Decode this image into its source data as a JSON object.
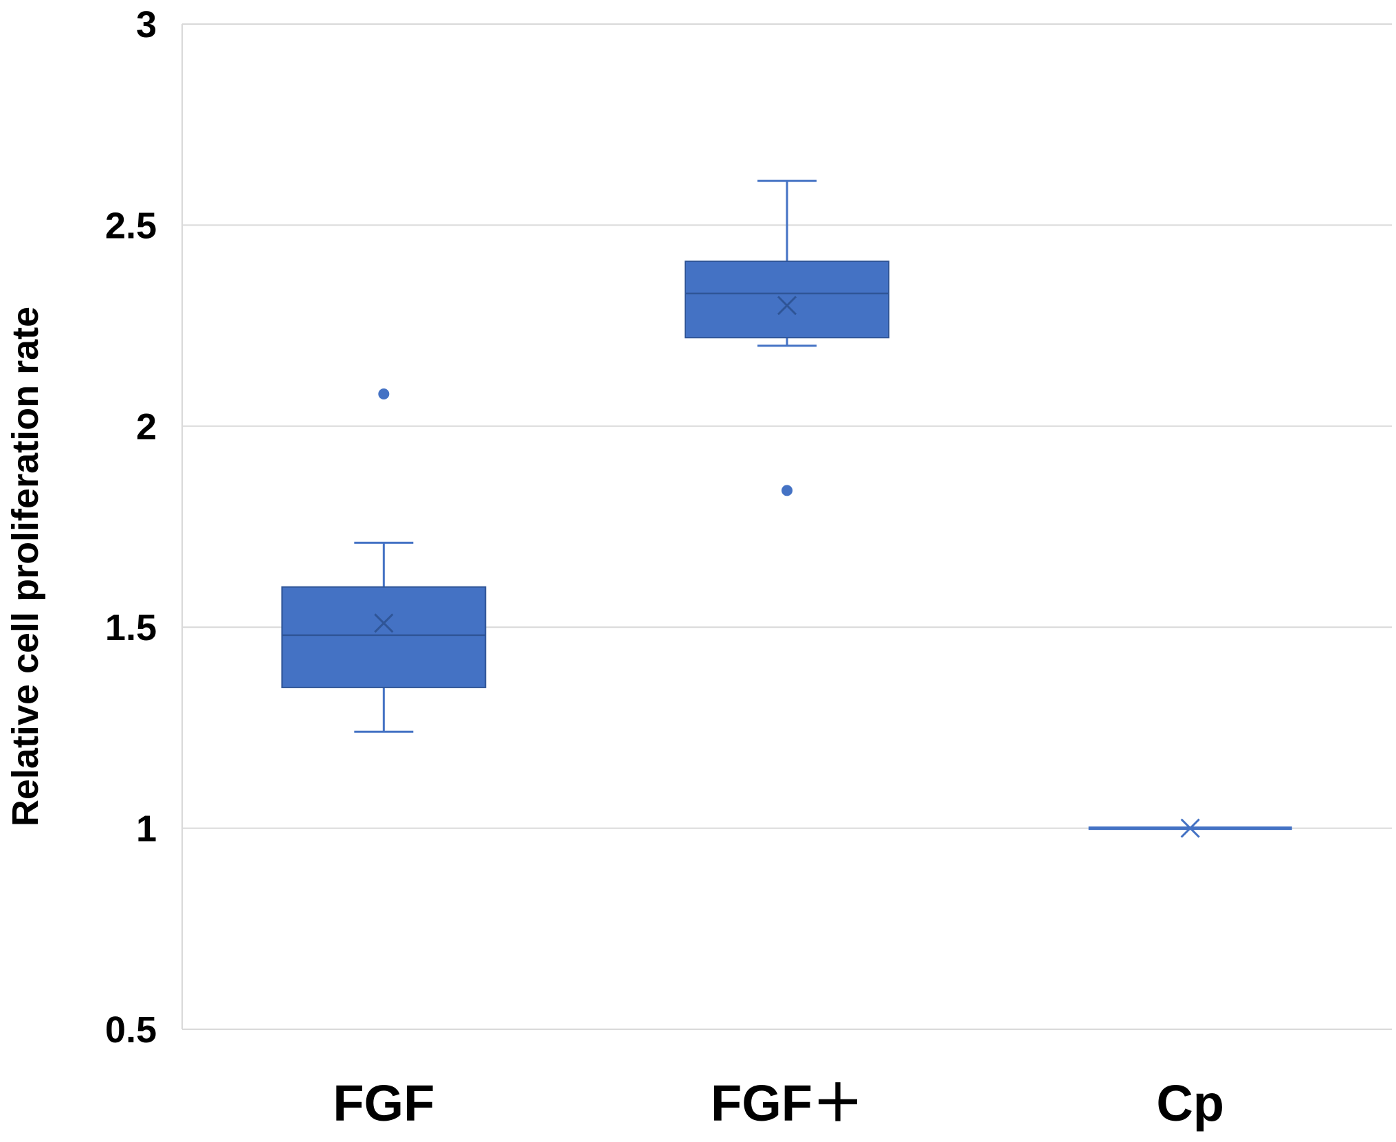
{
  "chart_data": {
    "type": "box",
    "title": "",
    "xlabel": "",
    "ylabel": "Relative cell proliferation rate",
    "ylim": [
      0.5,
      3
    ],
    "yticks": [
      "0.5",
      "1",
      "1.5",
      "2",
      "2.5",
      "3"
    ],
    "grid": true,
    "legend": "none",
    "color": "#4472C4",
    "categories": [
      "FGF",
      "FGF＋",
      "Cp"
    ],
    "boxes": [
      {
        "name": "FGF",
        "min": 1.24,
        "q1": 1.35,
        "median": 1.48,
        "q3": 1.6,
        "max": 1.71,
        "mean": 1.51,
        "outliers": [
          2.08
        ]
      },
      {
        "name": "FGF＋",
        "min": 2.2,
        "q1": 2.22,
        "median": 2.33,
        "q3": 2.41,
        "max": 2.61,
        "mean": 2.3,
        "outliers": [
          1.84
        ]
      },
      {
        "name": "Cp",
        "min": 1.0,
        "q1": 1.0,
        "median": 1.0,
        "q3": 1.0,
        "max": 1.0,
        "mean": 1.0,
        "outliers": []
      }
    ]
  }
}
